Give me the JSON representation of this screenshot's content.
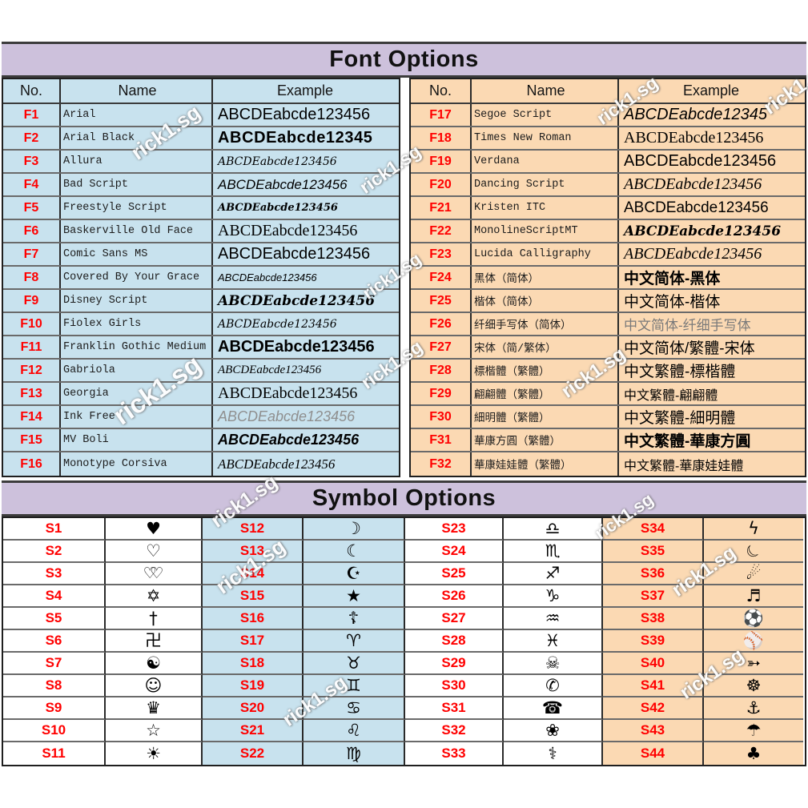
{
  "watermark_text": "rick1.sg",
  "colors": {
    "title_bar": "#cdc1dc",
    "table_blue": "#c8e2ee",
    "table_peach": "#fbd9b3",
    "number_red": "#ff0000",
    "border_dark": "#2a2a2a",
    "row_line": "#6a6a6a",
    "watermark": "#ffffff"
  },
  "font_section": {
    "title": "Font Options",
    "columns": [
      "No.",
      "Name",
      "Example"
    ],
    "tables": [
      {
        "side": "left",
        "rows": [
          {
            "no": "F1",
            "name": "Arial",
            "example": "ABCDEabcde123456",
            "style": "sans"
          },
          {
            "no": "F2",
            "name": "Arial Black",
            "example": "ABCDEabcde12345",
            "style": "heavy"
          },
          {
            "no": "F3",
            "name": "Allura",
            "example": "ABCDEabcde123456",
            "style": "script"
          },
          {
            "no": "F4",
            "name": "Bad Script",
            "example": "ABCDEabcde123456",
            "style": "hand"
          },
          {
            "no": "F5",
            "name": "Freestyle Script",
            "example": "ABCDEabcde123456",
            "style": "script-xs"
          },
          {
            "no": "F6",
            "name": "Baskerville Old Face",
            "example": "ABCDEabcde123456",
            "style": "serif"
          },
          {
            "no": "F7",
            "name": "Comic Sans MS",
            "example": "ABCDEabcde123456",
            "style": "sans"
          },
          {
            "no": "F8",
            "name": "Covered By Your Grace",
            "example": "ABCDEabcde123456",
            "style": "hand-sm"
          },
          {
            "no": "F9",
            "name": "Disney Script",
            "example": "ABCDEabcde123456",
            "style": "script-bold"
          },
          {
            "no": "F10",
            "name": "Fiolex Girls",
            "example": "ABCDEabcde123456",
            "style": "script"
          },
          {
            "no": "F11",
            "name": "Franklin Gothic Medium",
            "example": "ABCDEabcde123456",
            "style": "bold"
          },
          {
            "no": "F12",
            "name": "Gabriola",
            "example": "ABCDEabcde123456",
            "style": "serif-it-sm"
          },
          {
            "no": "F13",
            "name": "Georgia",
            "example": "ABCDEabcde123456",
            "style": "serif"
          },
          {
            "no": "F14",
            "name": "Ink Free",
            "example": "ABCDEabcde123456",
            "style": "hand-gray"
          },
          {
            "no": "F15",
            "name": "MV Boli",
            "example": "ABCDEabcde123456",
            "style": "hand-bold"
          },
          {
            "no": "F16",
            "name": "Monotype Corsiva",
            "example": "ABCDEabcde123456",
            "style": "serif-it"
          }
        ]
      },
      {
        "side": "right",
        "rows": [
          {
            "no": "F17",
            "name": "Segoe Script",
            "example": "ABCDEabcde12345",
            "style": "hand-lg"
          },
          {
            "no": "F18",
            "name": "Times New Roman",
            "example": "ABCDEabcde123456",
            "style": "serif"
          },
          {
            "no": "F19",
            "name": "Verdana",
            "example": "ABCDEabcde123456",
            "style": "sans"
          },
          {
            "no": "F20",
            "name": "Dancing Script",
            "example": "ABCDEabcde123456",
            "style": "serif-it-lg"
          },
          {
            "no": "F21",
            "name": "Kristen ITC",
            "example": "ABCDEabcde123456",
            "style": "sans-19"
          },
          {
            "no": "F22",
            "name": "MonolineScriptMT",
            "example": "ABCDEabcde123456",
            "style": "script-bold"
          },
          {
            "no": "F23",
            "name": "Lucida Calligraphy",
            "example": "ABCDEabcde123456",
            "style": "serif-it-lg"
          },
          {
            "no": "F24",
            "name": "黑体（简体）",
            "example": "中文简体-黑体",
            "style": "cjk-bold"
          },
          {
            "no": "F25",
            "name": "楷体（简体）",
            "example": "中文简体-楷体",
            "style": "cjk"
          },
          {
            "no": "F26",
            "name": "纤细手写体（简体）",
            "example": "中文简体-纤细手写体",
            "style": "cjk-light"
          },
          {
            "no": "F27",
            "name": "宋体（简/繁体）",
            "example": "中文简体/繁體-宋体",
            "style": "cjk"
          },
          {
            "no": "F28",
            "name": "標楷體（繁體）",
            "example": "中文繁體-標楷體",
            "style": "cjk"
          },
          {
            "no": "F29",
            "name": "翩翩體（繁體）",
            "example": "中文繁體-翩翩體",
            "style": "cjk-sm"
          },
          {
            "no": "F30",
            "name": "細明體（繁體）",
            "example": "中文繁體-細明體",
            "style": "cjk"
          },
          {
            "no": "F31",
            "name": "華康方圓（繁體）",
            "example": "中文繁體-華康方圓",
            "style": "cjk-bold"
          },
          {
            "no": "F32",
            "name": "華康娃娃體（繁體）",
            "example": "中文繁體-華康娃娃體",
            "style": "cjk-sm"
          }
        ]
      }
    ]
  },
  "symbol_section": {
    "title": "Symbol Options",
    "groups": [
      {
        "bg": "white",
        "rows": [
          {
            "no": "S1",
            "glyph": "♥",
            "icon": "black-heart"
          },
          {
            "no": "S2",
            "glyph": "♡",
            "icon": "white-heart"
          },
          {
            "no": "S3",
            "glyph": "♡♡",
            "icon": "double-hearts",
            "cls": "tight"
          },
          {
            "no": "S4",
            "glyph": "✡",
            "icon": "star-of-david"
          },
          {
            "no": "S5",
            "glyph": "†",
            "icon": "cross"
          },
          {
            "no": "S6",
            "glyph": "卍",
            "icon": "swastika"
          },
          {
            "no": "S7",
            "glyph": "☯",
            "icon": "yin-yang"
          },
          {
            "no": "S8",
            "glyph": "☺",
            "icon": "smiley-face"
          },
          {
            "no": "S9",
            "glyph": "♛",
            "icon": "crown"
          },
          {
            "no": "S10",
            "glyph": "☆",
            "icon": "white-star"
          },
          {
            "no": "S11",
            "glyph": "☀",
            "icon": "sun"
          }
        ]
      },
      {
        "bg": "blue",
        "rows": [
          {
            "no": "S12",
            "glyph": "☽",
            "icon": "crescent-moon"
          },
          {
            "no": "S13",
            "glyph": "☾",
            "icon": "crescent-moon-outline"
          },
          {
            "no": "S14",
            "glyph": "☪",
            "icon": "star-and-crescent"
          },
          {
            "no": "S15",
            "glyph": "★",
            "icon": "black-star"
          },
          {
            "no": "S16",
            "glyph": "☦",
            "icon": "orthodox-cross"
          },
          {
            "no": "S17",
            "glyph": "♈",
            "icon": "aries"
          },
          {
            "no": "S18",
            "glyph": "♉",
            "icon": "taurus"
          },
          {
            "no": "S19",
            "glyph": "♊",
            "icon": "gemini"
          },
          {
            "no": "S20",
            "glyph": "♋",
            "icon": "cancer"
          },
          {
            "no": "S21",
            "glyph": "♌",
            "icon": "leo"
          },
          {
            "no": "S22",
            "glyph": "♍",
            "icon": "virgo"
          }
        ]
      },
      {
        "bg": "white",
        "rows": [
          {
            "no": "S23",
            "glyph": "♎",
            "icon": "libra"
          },
          {
            "no": "S24",
            "glyph": "♏",
            "icon": "scorpio"
          },
          {
            "no": "S25",
            "glyph": "♐",
            "icon": "sagittarius"
          },
          {
            "no": "S26",
            "glyph": "♑",
            "icon": "capricorn"
          },
          {
            "no": "S27",
            "glyph": "♒",
            "icon": "aquarius"
          },
          {
            "no": "S28",
            "glyph": "♓",
            "icon": "pisces"
          },
          {
            "no": "S29",
            "glyph": "☠",
            "icon": "skull-crossbones"
          },
          {
            "no": "S30",
            "glyph": "✆",
            "icon": "phone-handset"
          },
          {
            "no": "S31",
            "glyph": "☎",
            "icon": "telephone"
          },
          {
            "no": "S32",
            "glyph": "❀",
            "icon": "flower"
          },
          {
            "no": "S33",
            "glyph": "⚕",
            "icon": "rod-of-asclepius"
          }
        ]
      },
      {
        "bg": "peach",
        "rows": [
          {
            "no": "S34",
            "glyph": "ϟ",
            "icon": "lightning-bolt"
          },
          {
            "no": "S35",
            "glyph": "☾",
            "icon": "crescent-moon-tilted",
            "cls": "tilt"
          },
          {
            "no": "S36",
            "glyph": "☄",
            "icon": "comet"
          },
          {
            "no": "S37",
            "glyph": "♬",
            "icon": "music-notes"
          },
          {
            "no": "S38",
            "glyph": "⚽",
            "icon": "soccer-ball"
          },
          {
            "no": "S39",
            "glyph": "⚾",
            "icon": "baseball"
          },
          {
            "no": "S40",
            "glyph": "➳",
            "icon": "arrow"
          },
          {
            "no": "S41",
            "glyph": "☸",
            "icon": "ship-wheel"
          },
          {
            "no": "S42",
            "glyph": "⚓",
            "icon": "anchor"
          },
          {
            "no": "S43",
            "glyph": "☂",
            "icon": "umbrella"
          },
          {
            "no": "S44",
            "glyph": "♣",
            "icon": "clover"
          }
        ]
      }
    ]
  }
}
